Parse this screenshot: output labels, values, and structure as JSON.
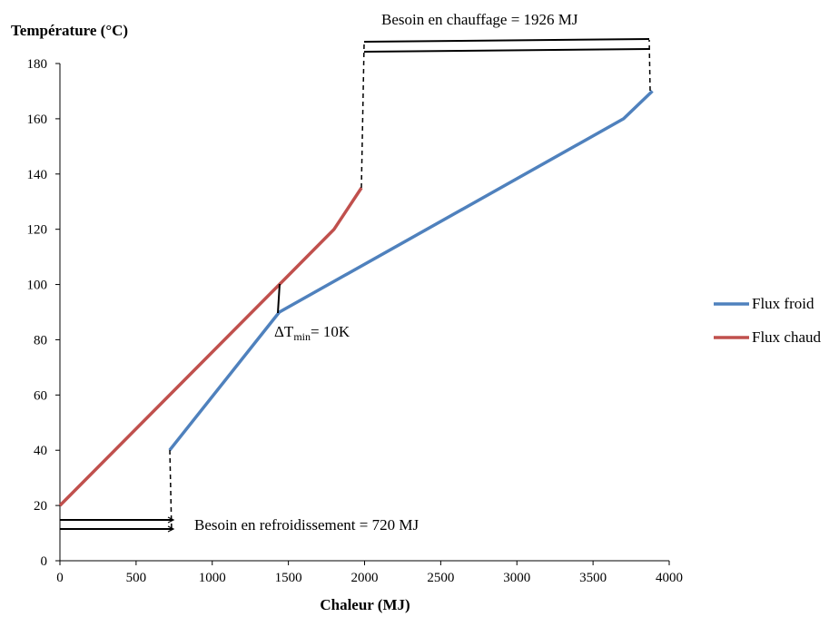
{
  "chart_data": {
    "type": "line",
    "ylabel": "Température (°C)",
    "xlabel": "Chaleur (MJ)",
    "xlim": [
      0,
      4000
    ],
    "ylim": [
      0,
      180
    ],
    "xticks": [
      0,
      500,
      1000,
      1500,
      2000,
      2500,
      3000,
      3500,
      4000
    ],
    "yticks": [
      0,
      20,
      40,
      60,
      80,
      100,
      120,
      140,
      160,
      180
    ],
    "grid": false,
    "legend_position": "right",
    "series": [
      {
        "name": "Flux froid",
        "color": "#4f81bd",
        "points": [
          [
            720,
            40
          ],
          [
            1440,
            90
          ],
          [
            3700,
            160
          ],
          [
            3890,
            170
          ]
        ]
      },
      {
        "name": "Flux chaud",
        "color": "#c0504d",
        "points": [
          [
            0,
            20
          ],
          [
            1440,
            100
          ],
          [
            1800,
            120
          ],
          [
            1980,
            135
          ]
        ]
      }
    ],
    "annotations": {
      "heating": {
        "text": "Besoin en chauffage =  1926 MJ",
        "value_mj": 1926
      },
      "cooling": {
        "text": "Besoin en refroidissement = 720 MJ",
        "value_mj": 720
      },
      "dtmin": {
        "symbol": "ΔT",
        "subscript": "min",
        "suffix": "= 10K"
      }
    }
  }
}
